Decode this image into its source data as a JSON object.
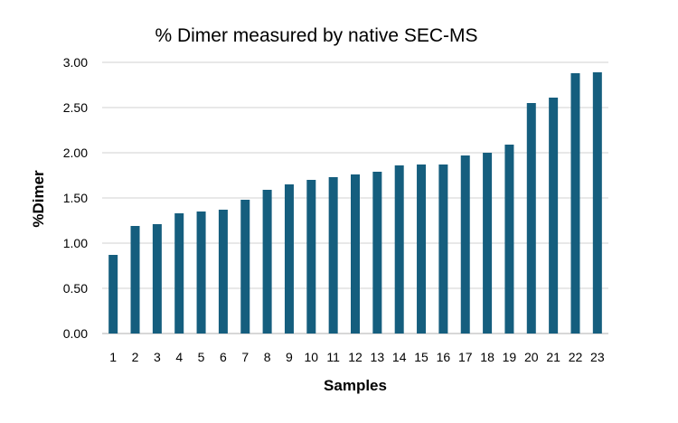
{
  "chart_data": {
    "type": "bar",
    "title": "% Dimer measured by native SEC-MS",
    "xlabel": "Samples",
    "ylabel": "%Dimer",
    "categories": [
      "1",
      "2",
      "3",
      "4",
      "5",
      "6",
      "7",
      "8",
      "9",
      "10",
      "11",
      "12",
      "13",
      "14",
      "15",
      "16",
      "17",
      "18",
      "19",
      "20",
      "21",
      "22",
      "23"
    ],
    "values": [
      0.87,
      1.19,
      1.21,
      1.33,
      1.35,
      1.37,
      1.48,
      1.59,
      1.65,
      1.7,
      1.73,
      1.76,
      1.79,
      1.86,
      1.87,
      1.87,
      1.97,
      2.0,
      2.09,
      2.55,
      2.61,
      2.88,
      2.89
    ],
    "ylim": [
      0,
      3
    ],
    "yticks": [
      "0.00",
      "0.50",
      "1.00",
      "1.50",
      "2.00",
      "2.50",
      "3.00"
    ],
    "grid": true,
    "bar_color": "#155E7E",
    "grid_color": "#D9D9D9"
  }
}
